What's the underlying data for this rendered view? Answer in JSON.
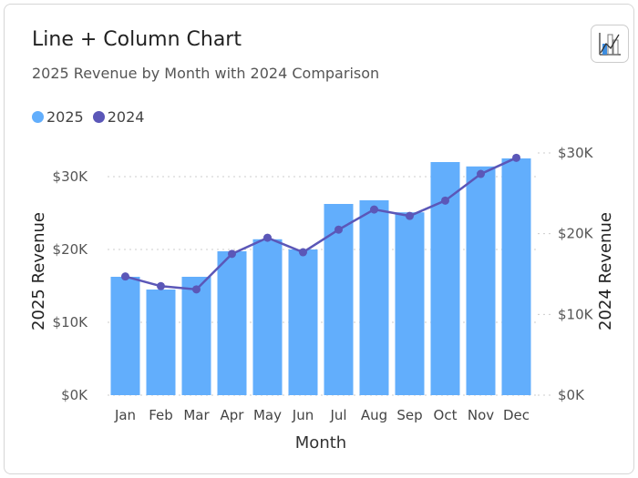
{
  "header": {
    "title": "Line + Column Chart",
    "subtitle": "2025 Revenue by Month with 2024 Comparison",
    "chart_type_icon": "line-column-chart-icon"
  },
  "colors": {
    "bars": "#62aefc",
    "line": "#5b57b8",
    "grid": "#cccccc"
  },
  "chart_data": {
    "type": "bar+line",
    "title": "Line + Column Chart",
    "subtitle": "2025 Revenue by Month with 2024 Comparison",
    "xlabel": "Month",
    "ylabel": "2025 Revenue",
    "y2label": "2024 Revenue",
    "categories": [
      "Jan",
      "Feb",
      "Mar",
      "Apr",
      "May",
      "Jun",
      "Jul",
      "Aug",
      "Sep",
      "Oct",
      "Nov",
      "Dec"
    ],
    "series": [
      {
        "name": "2025",
        "type": "bar",
        "axis": "left",
        "values": [
          16250,
          14500,
          16250,
          19750,
          21400,
          20000,
          26250,
          26750,
          25100,
          32000,
          31400,
          32500
        ]
      },
      {
        "name": "2024",
        "type": "line",
        "axis": "right",
        "values": [
          14700,
          13500,
          13100,
          17500,
          19500,
          17700,
          20500,
          23000,
          22200,
          24100,
          27400,
          29400
        ]
      }
    ],
    "ylim": [
      0,
      30000
    ],
    "yticks": [
      "$0K",
      "$10K",
      "$20K",
      "$30K"
    ],
    "ytick_values": [
      0,
      10000,
      20000,
      30000
    ],
    "y2lim": [
      0,
      30000
    ],
    "y2ticks": [
      "$0K",
      "$10K",
      "$20K",
      "$30K"
    ],
    "y2tick_values": [
      0,
      10000,
      20000,
      30000
    ],
    "grid": true,
    "legend": "top-left"
  }
}
